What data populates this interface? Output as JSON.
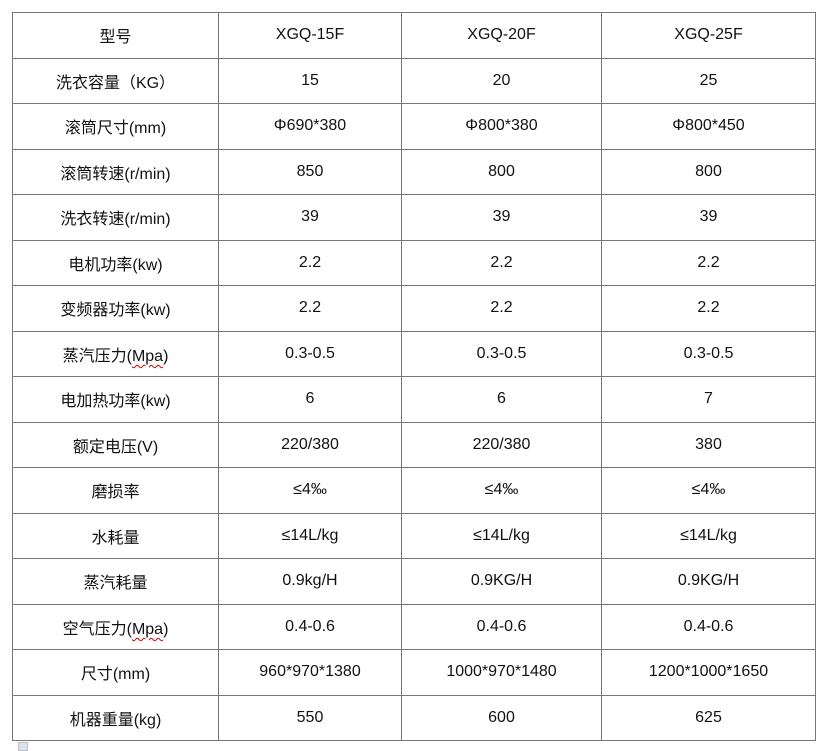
{
  "header": [
    "型号",
    "XGQ-15F",
    "XGQ-20F",
    "XGQ-25F"
  ],
  "rows": [
    [
      "洗衣容量（KG）",
      "15",
      "20",
      "25"
    ],
    [
      "滚筒尺寸(mm)",
      "Φ690*380",
      "Φ800*380",
      "Φ800*450"
    ],
    [
      "滚筒转速(r/min)",
      "850",
      "800",
      "800"
    ],
    [
      "洗衣转速(r/min)",
      "39",
      "39",
      "39"
    ],
    [
      "电机功率(kw)",
      "2.2",
      "2.2",
      "2.2"
    ],
    [
      "变频器功率(kw)",
      "2.2",
      "2.2",
      "2.2"
    ],
    [
      "蒸汽压力(Mpa)",
      "0.3-0.5",
      "0.3-0.5",
      "0.3-0.5"
    ],
    [
      "电加热功率(kw)",
      "6",
      "6",
      "7"
    ],
    [
      "额定电压(V)",
      "220/380",
      "220/380",
      "380"
    ],
    [
      "磨损率",
      "≤4‰",
      "≤4‰",
      "≤4‰"
    ],
    [
      "水耗量",
      "≤14L/kg",
      "≤14L/kg",
      "≤14L/kg"
    ],
    [
      "蒸汽耗量",
      "0.9kg/H",
      "0.9KG/H",
      "0.9KG/H"
    ],
    [
      "空气压力(Mpa)",
      "0.4-0.6",
      "0.4-0.6",
      "0.4-0.6"
    ],
    [
      "尺寸(mm)",
      "960*970*1380",
      "1000*970*1480",
      "1200*1000*1650"
    ],
    [
      "机器重量(kg)",
      "550",
      "600",
      "625"
    ]
  ]
}
